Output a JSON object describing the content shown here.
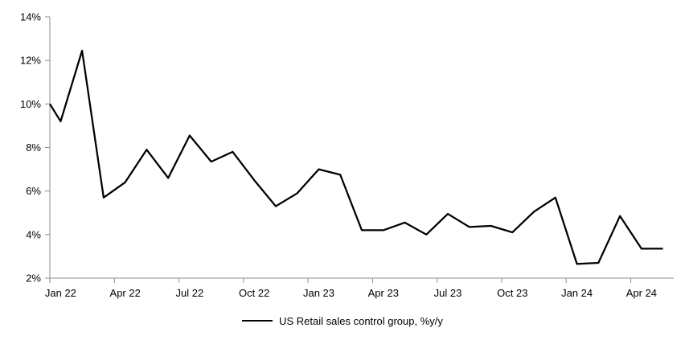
{
  "chart_data": {
    "type": "line",
    "title": "",
    "xlabel": "",
    "ylabel": "",
    "background": "#FFFFFF",
    "grid": false,
    "axis_color": "#8F8F8F",
    "legend_position": "bottom-center",
    "y_axis": {
      "min": 2,
      "max": 14,
      "tick_values": [
        14,
        12,
        10,
        8,
        6,
        4,
        2
      ],
      "tick_labels": [
        "14%",
        "12%",
        "10%",
        "8%",
        "6%",
        "4%",
        "2%"
      ]
    },
    "x_axis": {
      "tick_labels": [
        "Jan 22",
        "Apr 22",
        "Jul 22",
        "Oct 22",
        "Jan 23",
        "Apr 23",
        "Jul 23",
        "Oct 23",
        "Jan 24",
        "Apr 24"
      ],
      "tick_interval_months": 3
    },
    "categories": [
      "Jan 22",
      "Feb 22",
      "Mar 22",
      "Apr 22",
      "May 22",
      "Jun 22",
      "Jul 22",
      "Aug 22",
      "Sep 22",
      "Oct 22",
      "Nov 22",
      "Dec 22",
      "Jan 23",
      "Feb 23",
      "Mar 23",
      "Apr 23",
      "May 23",
      "Jun 23",
      "Jul 23",
      "Aug 23",
      "Sep 23",
      "Oct 23",
      "Nov 23",
      "Dec 23",
      "Jan 24",
      "Feb 24",
      "Mar 24",
      "Apr 24",
      "May 24"
    ],
    "series": [
      {
        "name": "US Retail sales control group, %y/y",
        "color": "#000000",
        "edge_value_at_plot_left": 10.0,
        "values": [
          9.2,
          12.45,
          5.7,
          6.4,
          7.9,
          6.6,
          8.55,
          7.35,
          7.8,
          6.5,
          5.3,
          5.9,
          7.0,
          6.75,
          4.2,
          4.2,
          4.55,
          4.0,
          4.95,
          4.35,
          4.4,
          4.1,
          5.05,
          5.7,
          2.65,
          2.7,
          4.85,
          3.35,
          3.35
        ]
      }
    ]
  }
}
